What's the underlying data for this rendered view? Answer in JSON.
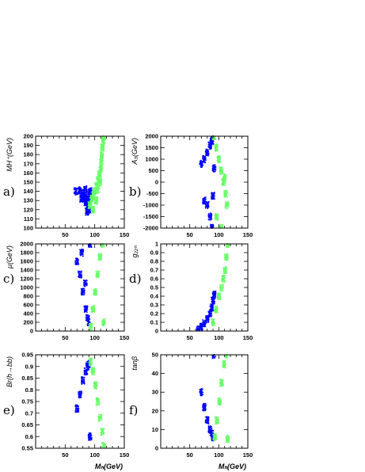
{
  "colors": {
    "blue": "#0000ff",
    "green": "#66ff66",
    "axis": "#000000"
  },
  "chart_data": [
    {
      "type": "scatter",
      "panel_label": "a)",
      "ylabel": "MH⁺(GeV)",
      "xlabel": "",
      "xlim": [
        0,
        150
      ],
      "ylim": [
        100,
        200
      ],
      "xticks": [
        50,
        100,
        150
      ],
      "yticks": [
        100,
        110,
        120,
        130,
        140,
        150,
        160,
        170,
        180,
        190,
        200
      ],
      "grid": false,
      "series": [
        {
          "color": "blue",
          "x": [
            68,
            75,
            80,
            83,
            85,
            88,
            90,
            91,
            92,
            92,
            78,
            86,
            89,
            84,
            87
          ],
          "y": [
            140,
            141,
            138,
            133,
            128,
            124,
            120,
            130,
            135,
            140,
            132,
            136,
            127,
            142,
            118
          ]
        },
        {
          "color": "green",
          "x": [
            92,
            95,
            98,
            100,
            103,
            106,
            108,
            110,
            111,
            112,
            113,
            114,
            115,
            109,
            105,
            102,
            97
          ],
          "y": [
            125,
            132,
            136,
            140,
            146,
            152,
            158,
            165,
            172,
            180,
            188,
            195,
            200,
            150,
            142,
            130,
            120
          ]
        }
      ]
    },
    {
      "type": "scatter",
      "panel_label": "b)",
      "ylabel": "A₃(GeV)",
      "xlabel": "",
      "xlim": [
        0,
        150
      ],
      "ylim": [
        -2000,
        2000
      ],
      "xticks": [
        50,
        100,
        150
      ],
      "yticks": [
        -2000,
        -1500,
        -1000,
        -500,
        0,
        500,
        1000,
        1500,
        2000
      ],
      "grid": false,
      "series": [
        {
          "color": "blue",
          "x": [
            70,
            75,
            80,
            85,
            88,
            90,
            92,
            80,
            85,
            88,
            75,
            90
          ],
          "y": [
            800,
            1000,
            1300,
            1600,
            1800,
            2000,
            600,
            -1000,
            -1500,
            -2000,
            -800,
            -600
          ]
        },
        {
          "color": "green",
          "x": [
            92,
            96,
            100,
            104,
            108,
            112,
            114,
            96,
            104,
            110
          ],
          "y": [
            2000,
            1500,
            1000,
            500,
            0,
            -500,
            -1000,
            -1500,
            -2000,
            200
          ]
        }
      ]
    },
    {
      "type": "scatter",
      "panel_label": "c)",
      "ylabel": "μ(GeV)",
      "xlabel": "",
      "xlim": [
        0,
        150
      ],
      "ylim": [
        0,
        2000
      ],
      "xticks": [
        50,
        100,
        150
      ],
      "yticks": [
        0,
        200,
        400,
        600,
        800,
        1000,
        1200,
        1400,
        1600,
        1800,
        2000
      ],
      "grid": false,
      "series": [
        {
          "color": "blue",
          "x": [
            70,
            75,
            80,
            85,
            88,
            90,
            92,
            78,
            84
          ],
          "y": [
            1600,
            1300,
            900,
            500,
            300,
            200,
            2000,
            1800,
            1100
          ]
        },
        {
          "color": "green",
          "x": [
            93,
            97,
            101,
            105,
            109,
            113,
            115
          ],
          "y": [
            100,
            500,
            900,
            1300,
            1700,
            2000,
            200
          ]
        }
      ]
    },
    {
      "type": "scatter",
      "panel_label": "d)",
      "ylabel": "g₂₂ₕ",
      "xlabel": "",
      "xlim": [
        0,
        150
      ],
      "ylim": [
        0,
        1
      ],
      "xticks": [
        50,
        100,
        150
      ],
      "yticks": [
        0,
        0.1,
        0.2,
        0.3,
        0.4,
        0.5,
        0.6,
        0.7,
        0.8,
        0.9,
        1
      ],
      "grid": false,
      "series": [
        {
          "color": "blue",
          "x": [
            65,
            70,
            75,
            80,
            85,
            88,
            90,
            92
          ],
          "y": [
            0.02,
            0.05,
            0.09,
            0.14,
            0.2,
            0.27,
            0.35,
            0.42
          ]
        },
        {
          "color": "green",
          "x": [
            90,
            95,
            100,
            105,
            108,
            111,
            113,
            115
          ],
          "y": [
            0.1,
            0.25,
            0.4,
            0.5,
            0.6,
            0.7,
            0.85,
            1.0
          ]
        }
      ]
    },
    {
      "type": "scatter",
      "panel_label": "e)",
      "ylabel": "Br(h→bb)",
      "xlabel": "Mₕ(GeV)",
      "xlim": [
        0,
        150
      ],
      "ylim": [
        0.55,
        0.95
      ],
      "xticks": [
        50,
        100,
        150
      ],
      "yticks": [
        0.55,
        0.6,
        0.65,
        0.7,
        0.75,
        0.8,
        0.85,
        0.9,
        0.95
      ],
      "grid": false,
      "series": [
        {
          "color": "blue",
          "x": [
            70,
            75,
            80,
            85,
            88,
            90,
            92
          ],
          "y": [
            0.72,
            0.78,
            0.84,
            0.88,
            0.9,
            0.91,
            0.6
          ]
        },
        {
          "color": "green",
          "x": [
            93,
            97,
            101,
            105,
            109,
            113,
            115
          ],
          "y": [
            0.92,
            0.88,
            0.82,
            0.75,
            0.68,
            0.62,
            0.56
          ]
        }
      ]
    },
    {
      "type": "scatter",
      "panel_label": "f)",
      "ylabel": "tanβ",
      "xlabel": "Mₕ(GeV)",
      "xlim": [
        0,
        150
      ],
      "ylim": [
        0,
        50
      ],
      "xticks": [
        50,
        100,
        150
      ],
      "yticks": [
        0,
        10,
        20,
        30,
        40,
        50
      ],
      "grid": false,
      "series": [
        {
          "color": "blue",
          "x": [
            70,
            75,
            80,
            85,
            88,
            90,
            92
          ],
          "y": [
            30,
            22,
            15,
            10,
            8,
            6,
            50
          ]
        },
        {
          "color": "green",
          "x": [
            93,
            97,
            101,
            105,
            109,
            113,
            115
          ],
          "y": [
            6,
            15,
            25,
            35,
            45,
            50,
            5
          ]
        }
      ]
    }
  ]
}
